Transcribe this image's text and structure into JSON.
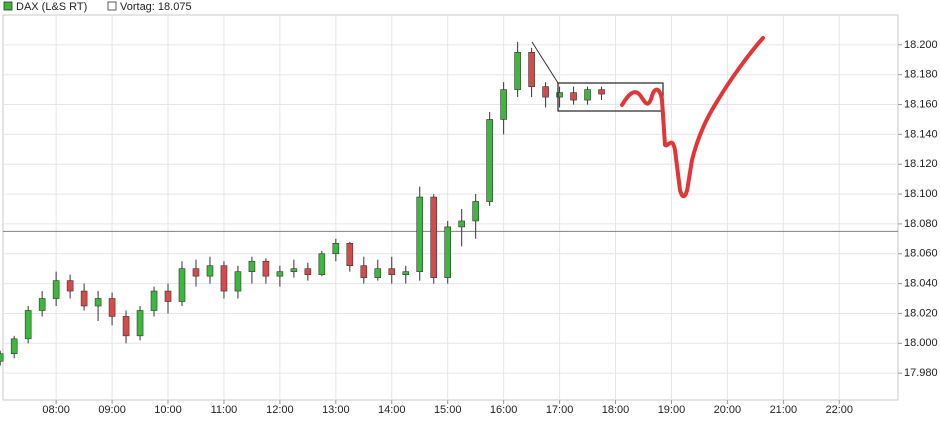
{
  "chart_data": {
    "type": "candlestick",
    "series": [
      {
        "name": "DAX (L&S RT)",
        "up_color": "#3cb83c",
        "down_color": "#d84a4a",
        "x": [
          7,
          7.25,
          7.5,
          7.75,
          8,
          8.25,
          8.5,
          8.75,
          9,
          9.25,
          9.5,
          9.75,
          10,
          10.25,
          10.5,
          10.75,
          11,
          11.25,
          11.5,
          11.75,
          12,
          12.25,
          12.5,
          12.75,
          13,
          13.25,
          13.5,
          13.75,
          14,
          14.25,
          14.5,
          14.75,
          15,
          15.25,
          15.5,
          15.75,
          16,
          16.25,
          16.5,
          16.75,
          17,
          17.25,
          17.5,
          17.75
        ],
        "open": [
          17988,
          17993,
          18003,
          18022,
          18030,
          18042,
          18035,
          18025,
          18030,
          18018,
          18005,
          18022,
          18035,
          18028,
          18050,
          18045,
          18052,
          18035,
          18048,
          18055,
          18045,
          18048,
          18050,
          18046,
          18060,
          18067,
          18052,
          18044,
          18050,
          18046,
          18048,
          18098,
          18044,
          18078,
          18082,
          18095,
          18150,
          18170,
          18195,
          18172,
          18165,
          18168,
          18163,
          18170
        ],
        "high": [
          17995,
          18005,
          18025,
          18035,
          18048,
          18046,
          18040,
          18035,
          18034,
          18022,
          18025,
          18038,
          18040,
          18055,
          18056,
          18058,
          18055,
          18052,
          18058,
          18057,
          18052,
          18056,
          18054,
          18062,
          18070,
          18068,
          18058,
          18056,
          18058,
          18052,
          18105,
          18100,
          18082,
          18090,
          18100,
          18155,
          18175,
          18202,
          18198,
          18175,
          18172,
          18172,
          18172,
          18172
        ],
        "low": [
          17985,
          17990,
          18000,
          18018,
          18025,
          18030,
          18022,
          18015,
          18012,
          18000,
          18002,
          18018,
          18020,
          18025,
          18038,
          18040,
          18030,
          18030,
          18040,
          18040,
          18038,
          18044,
          18042,
          18045,
          18055,
          18048,
          18040,
          18042,
          18040,
          18040,
          18042,
          18040,
          18040,
          18065,
          18070,
          18092,
          18140,
          18165,
          18165,
          18158,
          18158,
          18160,
          18160,
          18163
        ],
        "close": [
          17993,
          18003,
          18022,
          18030,
          18042,
          18035,
          18025,
          18030,
          18018,
          18005,
          18022,
          18035,
          18028,
          18050,
          18045,
          18052,
          18035,
          18048,
          18055,
          18045,
          18048,
          18050,
          18046,
          18060,
          18067,
          18052,
          18044,
          18050,
          18046,
          18048,
          18098,
          18044,
          18078,
          18082,
          18095,
          18150,
          18170,
          18195,
          18172,
          18165,
          18168,
          18163,
          18170,
          18167
        ]
      }
    ],
    "reference_line": {
      "label": "Vortag: 18.075",
      "value": 18075,
      "color": "#808080"
    },
    "xlim": [
      7.05,
      23.05
    ],
    "xticks": [
      {
        "value": 8,
        "label": "08:00"
      },
      {
        "value": 9,
        "label": "09:00"
      },
      {
        "value": 10,
        "label": "10:00"
      },
      {
        "value": 11,
        "label": "11:00"
      },
      {
        "value": 12,
        "label": "12:00"
      },
      {
        "value": 13,
        "label": "13:00"
      },
      {
        "value": 14,
        "label": "14:00"
      },
      {
        "value": 15,
        "label": "15:00"
      },
      {
        "value": 16,
        "label": "16:00"
      },
      {
        "value": 17,
        "label": "17:00"
      },
      {
        "value": 18,
        "label": "18:00"
      },
      {
        "value": 19,
        "label": "19:00"
      },
      {
        "value": 20,
        "label": "20:00"
      },
      {
        "value": 21,
        "label": "21:00"
      },
      {
        "value": 22,
        "label": "22:00"
      }
    ],
    "ylim": [
      17962,
      18220
    ],
    "yticks": [
      {
        "value": 17980,
        "label": "17.980"
      },
      {
        "value": 18000,
        "label": "18.000"
      },
      {
        "value": 18020,
        "label": "18.020"
      },
      {
        "value": 18040,
        "label": "18.040"
      },
      {
        "value": 18060,
        "label": "18.060"
      },
      {
        "value": 18080,
        "label": "18.080"
      },
      {
        "value": 18100,
        "label": "18.100"
      },
      {
        "value": 18120,
        "label": "18.120"
      },
      {
        "value": 18140,
        "label": "18.140"
      },
      {
        "value": 18160,
        "label": "18.160"
      },
      {
        "value": 18180,
        "label": "18.180"
      },
      {
        "value": 18200,
        "label": "18.200"
      }
    ],
    "grid": true
  }
}
